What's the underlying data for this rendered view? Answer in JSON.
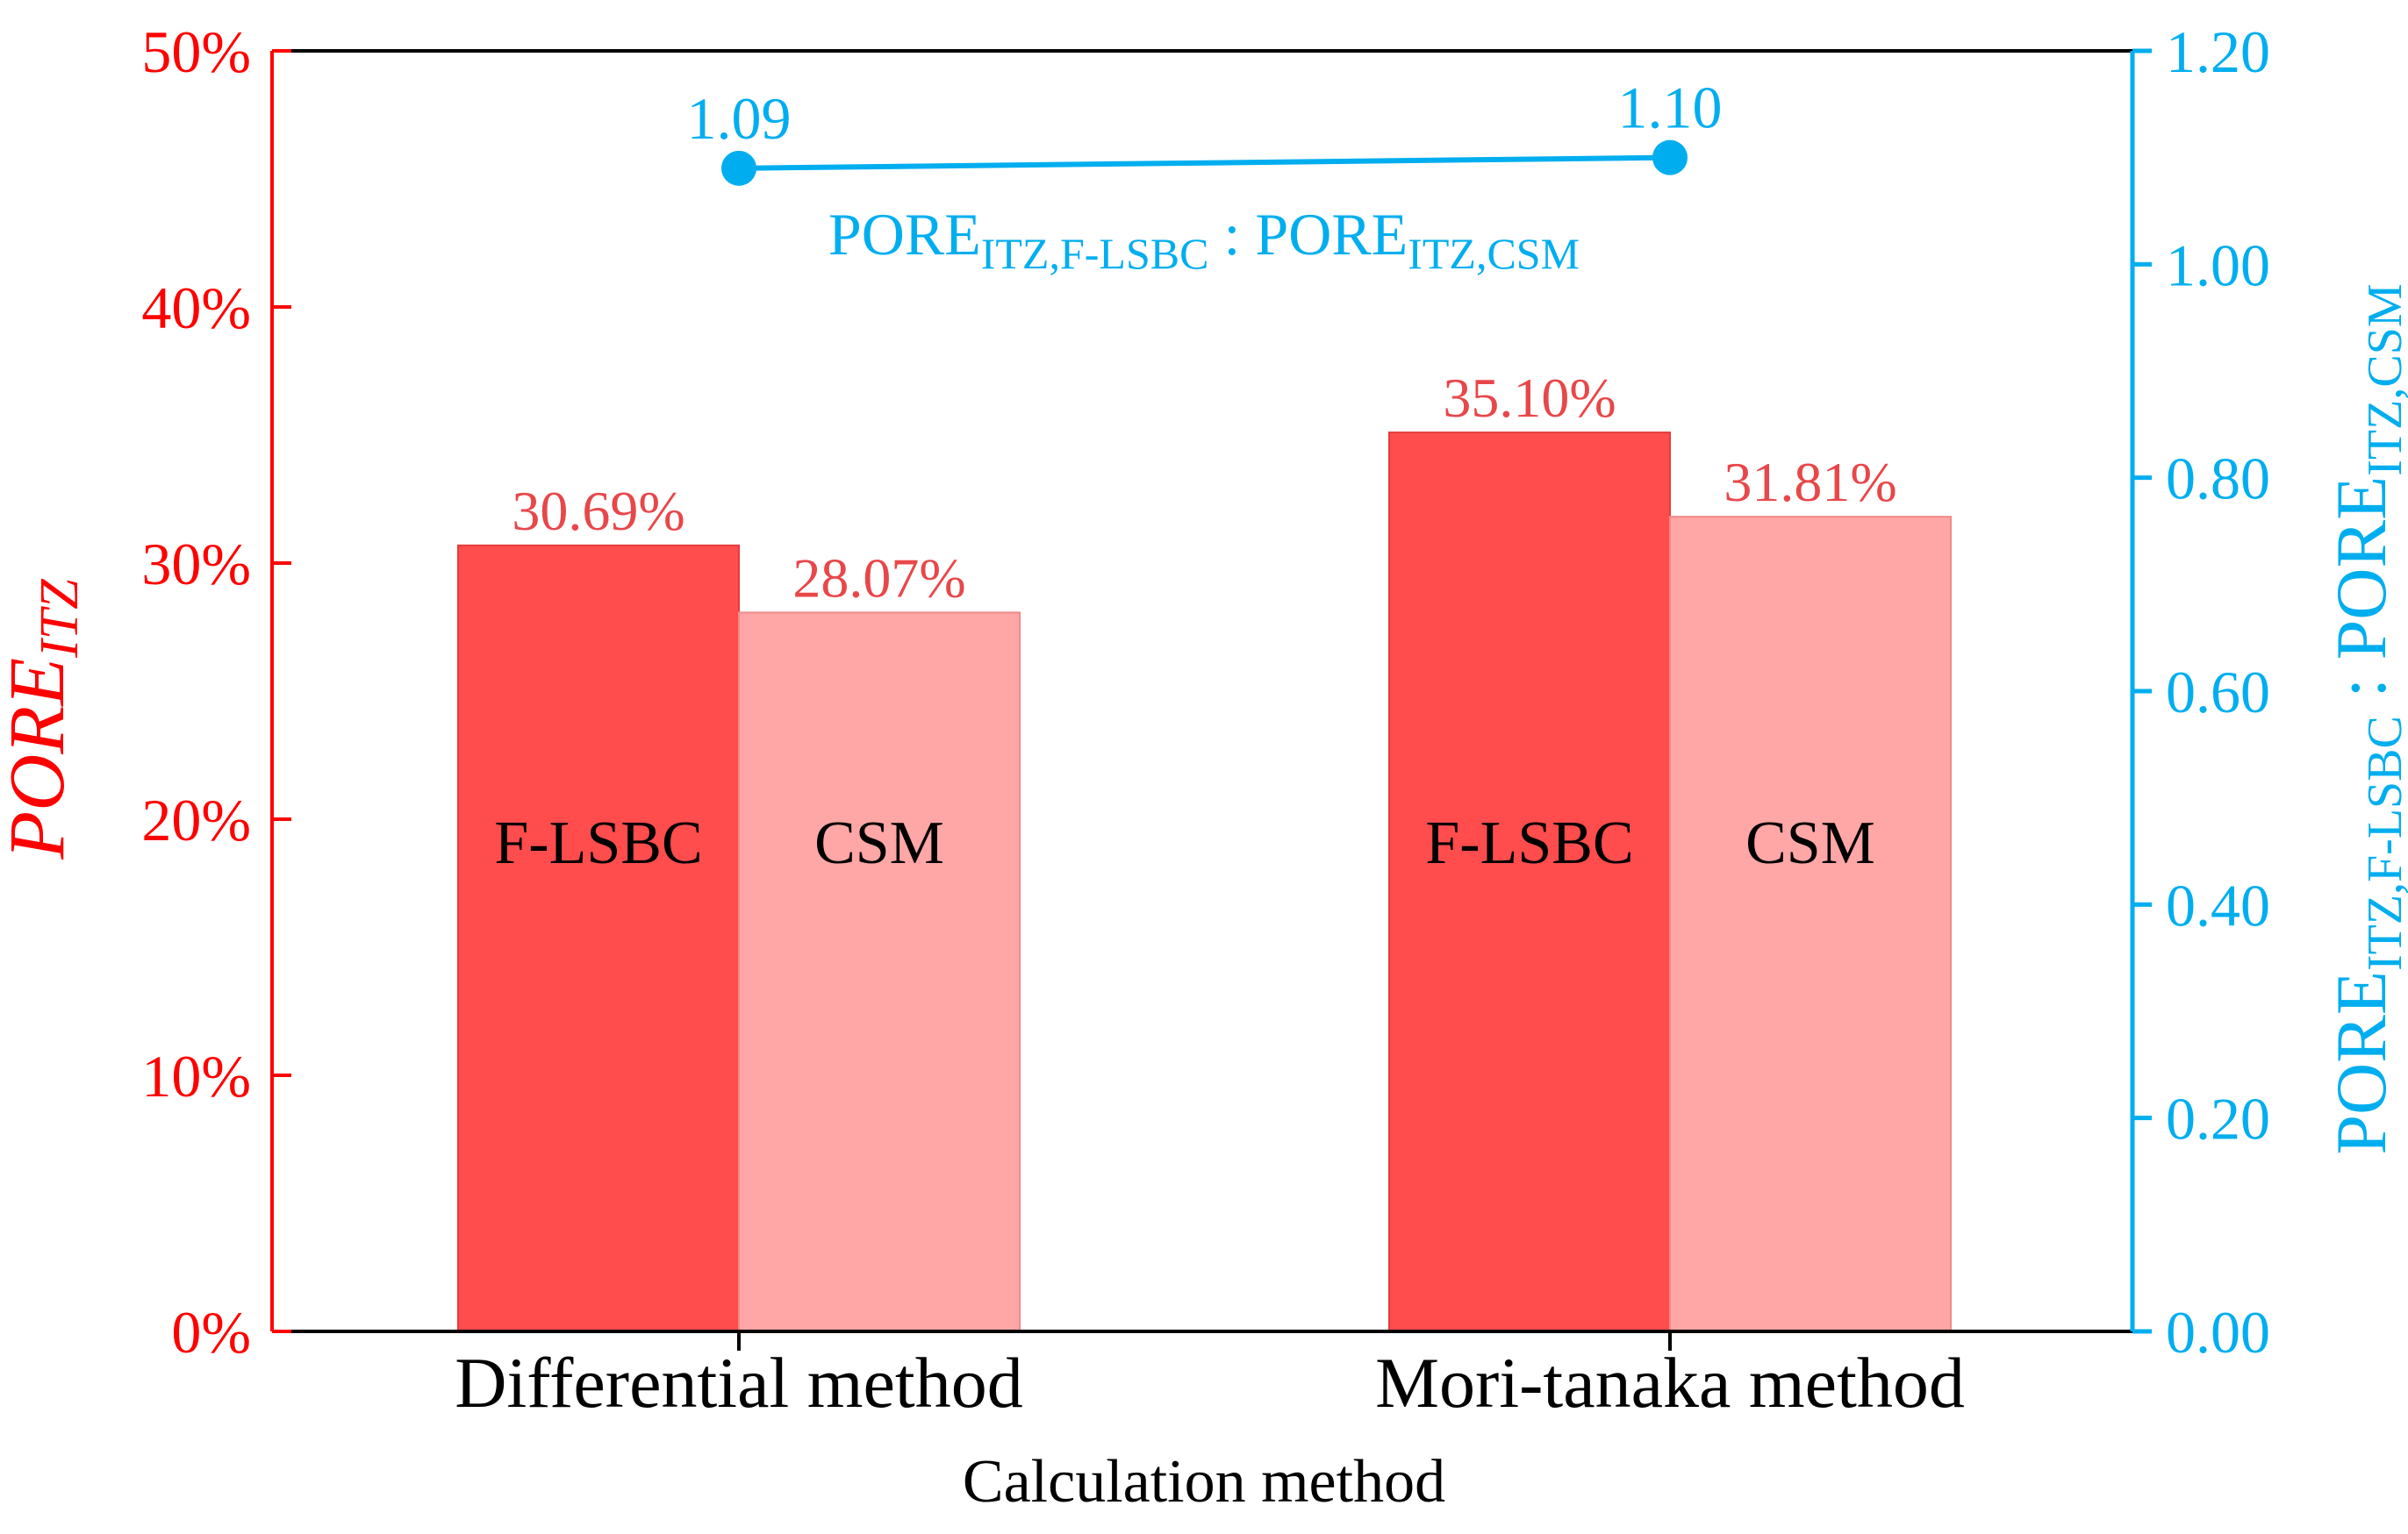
{
  "chart_data": {
    "type": "bar",
    "title": "",
    "xlabel": "Calculation method",
    "ylabel": {
      "main": "PORE",
      "sub": "ITZ"
    },
    "ylim": [
      0,
      50
    ],
    "yticks": [
      "0%",
      "10%",
      "20%",
      "30%",
      "40%",
      "50%"
    ],
    "categories": [
      "Differential method",
      "Mori-tanaka method"
    ],
    "series": [
      {
        "name": "F-LSBC",
        "values": [
          30.69,
          35.1
        ],
        "labels": [
          "30.69%",
          "35.10%"
        ],
        "color": "#ff4c4c"
      },
      {
        "name": "CSM",
        "values": [
          28.07,
          31.81
        ],
        "labels": [
          "28.07%",
          "31.81%"
        ],
        "color": "#ffa6a6"
      }
    ],
    "secondary": {
      "type": "line",
      "ylabel": {
        "a": "PORE",
        "a_sub": "ITZ,F-LSBC",
        "sep": " : ",
        "b": "PORE",
        "b_sub": "ITZ,CSM"
      },
      "ylim": [
        0,
        1.2
      ],
      "yticks": [
        "0.00",
        "0.20",
        "0.40",
        "0.60",
        "0.80",
        "1.00",
        "1.20"
      ],
      "values": [
        1.09,
        1.1
      ],
      "labels": [
        "1.09",
        "1.10"
      ],
      "color": "#00aeef"
    },
    "axis_colors": {
      "left": "#ff0000",
      "right": "#00aeef",
      "bottom": "#000000"
    }
  }
}
